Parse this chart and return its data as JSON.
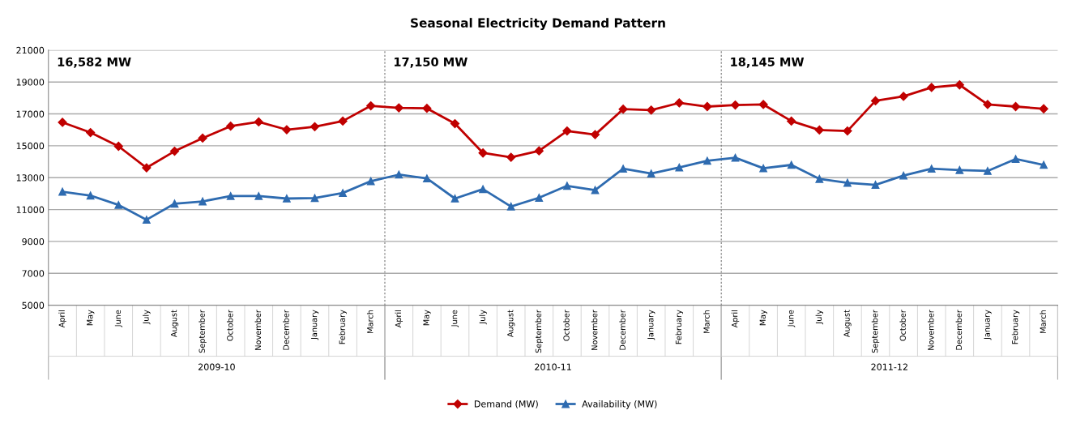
{
  "chart_data": {
    "type": "line",
    "title": "Seasonal Electricity Demand Pattern",
    "categories": [
      "April",
      "May",
      "June",
      "July",
      "August",
      "September",
      "October",
      "November",
      "December",
      "January",
      "February",
      "March",
      "April",
      "May",
      "June",
      "July",
      "August",
      "September",
      "October",
      "November",
      "December",
      "January",
      "February",
      "March",
      "April",
      "May",
      "June",
      "July",
      "August",
      "September",
      "October",
      "November",
      "December",
      "January",
      "February",
      "March"
    ],
    "series": [
      {
        "name": "Demand (MW)",
        "color": "#c00000",
        "marker": "diamond",
        "values": [
          16470,
          15830,
          14970,
          13620,
          14660,
          15480,
          16230,
          16500,
          16010,
          16200,
          16550,
          17510,
          17380,
          17350,
          16390,
          14550,
          14280,
          14680,
          15930,
          15700,
          17300,
          17240,
          17690,
          17460,
          17560,
          17590,
          16550,
          15990,
          15930,
          17820,
          18100,
          18660,
          18820,
          17590,
          17460,
          17320
        ]
      },
      {
        "name": "Availability (MW)",
        "color": "#2e6bb0",
        "marker": "triangle",
        "values": [
          12120,
          11880,
          11290,
          10360,
          11370,
          11510,
          11850,
          11850,
          11690,
          11720,
          12040,
          12780,
          13190,
          12950,
          11690,
          12280,
          11190,
          11740,
          12490,
          12220,
          13560,
          13260,
          13640,
          14060,
          14250,
          13590,
          13800,
          12920,
          12680,
          12550,
          13130,
          13560,
          13480,
          13420,
          14170,
          13800
        ]
      }
    ],
    "ylim": [
      5000,
      21000
    ],
    "yticks": [
      5000,
      7000,
      9000,
      11000,
      13000,
      15000,
      17000,
      19000,
      21000
    ],
    "grid": "y",
    "legend": "bottom",
    "annotations": [
      "16,582 MW",
      "17,150 MW",
      "18,145 MW",
      "2009-10",
      "2010-11",
      "2011-12"
    ]
  }
}
